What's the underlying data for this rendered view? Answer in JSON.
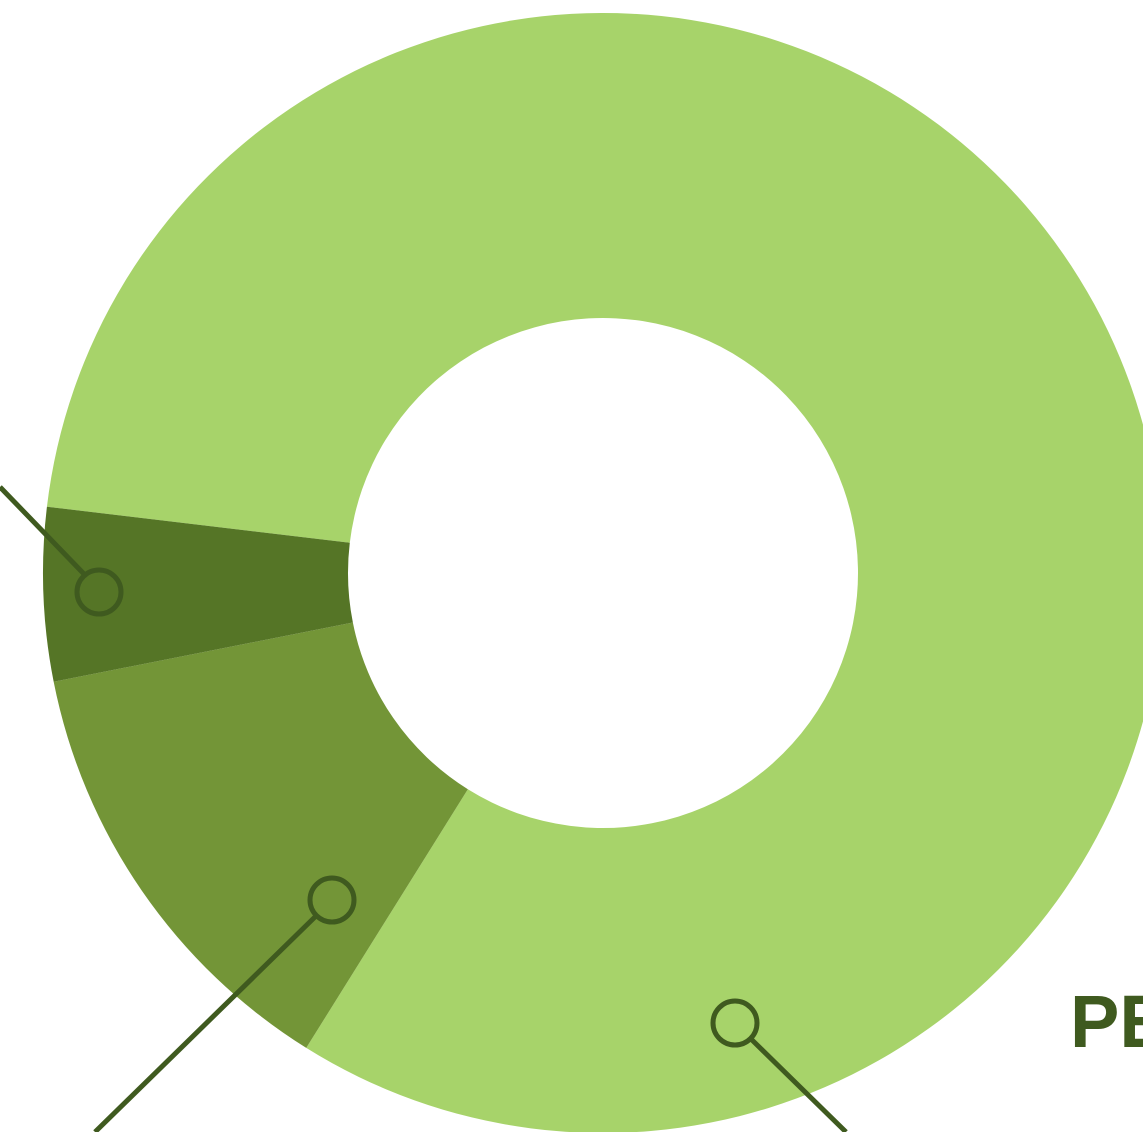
{
  "chart_data": {
    "type": "donut",
    "values": [
      82,
      13,
      5
    ],
    "colors": [
      "#a7d36a",
      "#739537",
      "#557526"
    ],
    "annotation": "PE"
  }
}
